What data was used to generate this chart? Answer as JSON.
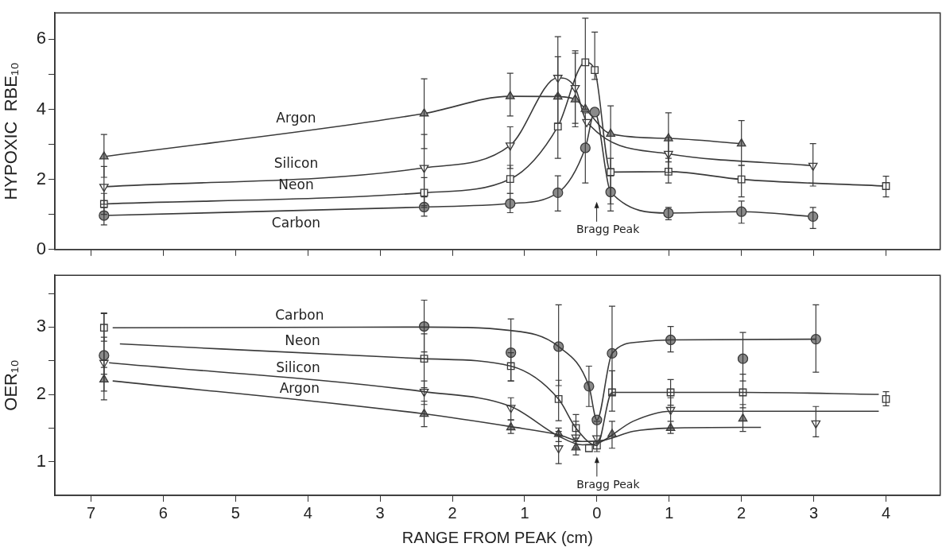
{
  "chart_data": [
    {
      "type": "line",
      "ylabel": "HYPOXIC  RBE₁₀",
      "xlim": [
        -7.5,
        4.75
      ],
      "ylim": [
        0,
        6.75
      ],
      "xticks": [
        {
          "value": -7,
          "label": null
        },
        {
          "value": -6,
          "label": null
        },
        {
          "value": -5,
          "label": null
        },
        {
          "value": -4,
          "label": null
        },
        {
          "value": -3,
          "label": null
        },
        {
          "value": -2,
          "label": null
        },
        {
          "value": -1,
          "label": null
        },
        {
          "value": 0,
          "label": null
        },
        {
          "value": 1,
          "label": null
        },
        {
          "value": 2,
          "label": null
        },
        {
          "value": 3,
          "label": null
        },
        {
          "value": 4,
          "label": null
        }
      ],
      "yticks": [
        0,
        {
          "value": 1,
          "label": null
        },
        2,
        {
          "value": 3,
          "label": null
        },
        4,
        {
          "value": 5,
          "label": null
        },
        6
      ],
      "tick_labels": "y",
      "grid": false,
      "legend": false,
      "line_style": "solid",
      "annotations": [
        "Bragg Peak"
      ],
      "series": [
        {
          "name": "Argon",
          "color": "#3a3a3a",
          "marker": "triangle",
          "x": [
            -6.82,
            -2.39,
            -1.2,
            -0.54,
            -0.3,
            -0.16,
            0.19,
            0.99,
            2.0
          ],
          "values": [
            2.65,
            3.88,
            4.37,
            4.36,
            4.28,
            4.01,
            3.3,
            3.17,
            3.02
          ],
          "errors": [
            [
              2.06,
              3.28
            ],
            [
              2.88,
              4.87
            ],
            [
              3.81,
              5.03
            ],
            [
              3.6,
              5.5
            ],
            [
              3.6,
              5.6
            ],
            null,
            [
              2.3,
              4.1
            ],
            [
              2.5,
              3.9
            ],
            [
              2.4,
              3.68
            ]
          ]
        },
        {
          "name": "Silicon",
          "color": "#3a3a3a",
          "marker": "triangle-down",
          "x": [
            -6.82,
            -2.39,
            -1.2,
            -0.54,
            -0.3,
            -0.14,
            0.99,
            2.99
          ],
          "values": [
            1.79,
            2.33,
            2.97,
            4.9,
            4.61,
            3.64,
            2.73,
            2.39
          ],
          "errors": [
            [
              1.29,
              2.37
            ],
            [
              1.25,
              3.28
            ],
            [
              2.31,
              3.5
            ],
            [
              4.37,
              6.07
            ],
            [
              3.5,
              5.67
            ],
            null,
            [
              2.2,
              3.2
            ],
            [
              1.81,
              3.02
            ]
          ]
        },
        {
          "name": "Neon",
          "color": "#3a3a3a",
          "marker": "square",
          "x": [
            -6.82,
            -2.39,
            -1.2,
            -0.54,
            -0.16,
            -0.03,
            0.19,
            0.99,
            2.0,
            4.0
          ],
          "values": [
            1.3,
            1.62,
            2.01,
            3.51,
            5.34,
            5.12,
            2.21,
            2.22,
            2.0,
            1.81
          ],
          "errors": [
            [
              1.0,
              1.6
            ],
            [
              1.2,
              2.05
            ],
            [
              1.6,
              2.4
            ],
            [
              2.6,
              4.4
            ],
            [
              4.0,
              6.6
            ],
            [
              4.85,
              6.2
            ],
            [
              1.3,
              2.6
            ],
            [
              1.9,
              2.6
            ],
            [
              1.5,
              2.4
            ],
            [
              1.5,
              2.09
            ]
          ]
        },
        {
          "name": "Carbon",
          "color": "#3a3a3a",
          "marker": "circle",
          "x": [
            -6.82,
            -2.39,
            -1.2,
            -0.54,
            -0.16,
            -0.03,
            0.19,
            0.99,
            2.0,
            2.99
          ],
          "values": [
            0.97,
            1.21,
            1.31,
            1.62,
            2.9,
            3.92,
            1.64,
            1.04,
            1.08,
            0.94
          ],
          "errors": [
            [
              0.7,
              1.2
            ],
            [
              0.95,
              1.5
            ],
            [
              1.05,
              1.6
            ],
            [
              1.1,
              2.1
            ],
            [
              1.9,
              3.9
            ],
            null,
            [
              1.1,
              2.1
            ],
            [
              0.85,
              1.2
            ],
            [
              0.75,
              1.38
            ],
            [
              0.6,
              1.2
            ]
          ]
        }
      ]
    },
    {
      "type": "scatter",
      "xlabel": "RANGE FROM PEAK (cm)",
      "ylabel": "OER₁₀",
      "xlim": [
        -7.5,
        4.75
      ],
      "ylim": [
        0.5,
        3.77
      ],
      "xticks": [
        {
          "value": -7,
          "label": "7"
        },
        {
          "value": -6,
          "label": "6"
        },
        {
          "value": -5,
          "label": "5"
        },
        {
          "value": -4,
          "label": "4"
        },
        {
          "value": -3,
          "label": "3"
        },
        {
          "value": -2,
          "label": "2"
        },
        {
          "value": -1,
          "label": "1"
        },
        0,
        1,
        2,
        3,
        4
      ],
      "yticks": [
        1,
        {
          "value": 1.5,
          "label": null
        },
        2,
        {
          "value": 2.5,
          "label": null
        },
        3,
        {
          "value": 3.5,
          "label": null
        }
      ],
      "grid": false,
      "legend": false,
      "line_style": "solid",
      "annotations": [
        {
          "text": "Bragg Peak",
          "x": 0,
          "y": 1.24
        }
      ],
      "series": [
        {
          "name": "Carbon",
          "type": "line",
          "color": "#3a3a3a",
          "marker": "none",
          "x": [
            -6.7,
            -2.39,
            -1.2,
            -0.53,
            -0.11,
            0.0,
            0.21,
            0.6,
            1.02,
            3.03
          ],
          "values": [
            2.99,
            3.0,
            2.95,
            2.71,
            2.12,
            1.62,
            2.61,
            2.78,
            2.81,
            2.82
          ]
        },
        {
          "name": "Neon",
          "type": "line",
          "color": "#3a3a3a",
          "marker": "none",
          "x": [
            -6.6,
            -2.39,
            -1.19,
            -0.53,
            -0.29,
            0.0,
            0.21,
            1.02,
            2.02,
            3.9
          ],
          "values": [
            2.75,
            2.53,
            2.42,
            1.93,
            1.5,
            1.24,
            2.03,
            2.03,
            2.03,
            2.0
          ]
        },
        {
          "name": "Silicon",
          "type": "line",
          "color": "#3a3a3a",
          "marker": "none",
          "x": [
            -6.75,
            -2.39,
            -1.19,
            -0.53,
            -0.2,
            0.0,
            0.5,
            1.02,
            2.0,
            3.9
          ],
          "values": [
            2.47,
            2.04,
            1.82,
            1.38,
            1.25,
            1.27,
            1.6,
            1.75,
            1.75,
            1.75
          ]
        },
        {
          "name": "Argon",
          "type": "line",
          "color": "#3a3a3a",
          "marker": "none",
          "x": [
            -6.7,
            -2.39,
            -1.19,
            -0.53,
            -0.2,
            0.1,
            0.5,
            1.02,
            2.27
          ],
          "values": [
            2.2,
            1.71,
            1.52,
            1.4,
            1.3,
            1.32,
            1.45,
            1.5,
            1.51
          ]
        },
        {
          "color": "#3a3a3a",
          "marker": "circle",
          "x": [
            -6.82,
            -2.39,
            -1.19,
            -0.53,
            -0.11,
            0.0,
            0.21,
            1.02,
            2.02,
            3.03
          ],
          "values": [
            2.58,
            3.01,
            2.62,
            2.71,
            2.12,
            1.62,
            2.61,
            2.81,
            2.53,
            2.82
          ],
          "errors": [
            [
              2.3,
              3.2
            ],
            [
              2.63,
              3.4
            ],
            [
              2.2,
              3.12
            ],
            [
              2.13,
              3.33
            ],
            [
              1.82,
              2.42
            ],
            null,
            [
              2.0,
              3.31
            ],
            [
              2.63,
              3.01
            ],
            [
              2.2,
              2.92
            ],
            [
              2.33,
              3.33
            ]
          ]
        },
        {
          "color": "#3a3a3a",
          "marker": "square",
          "x": [
            -6.82,
            -2.39,
            -1.19,
            -0.53,
            -0.29,
            -0.11,
            0.0,
            0.21,
            1.02,
            2.02,
            4.0
          ],
          "values": [
            2.99,
            2.53,
            2.42,
            1.93,
            1.5,
            1.2,
            1.24,
            2.03,
            2.03,
            2.03,
            1.93
          ],
          "errors": [
            [
              2.79,
              3.21
            ],
            [
              2.1,
              2.9
            ],
            [
              2.2,
              2.62
            ],
            [
              1.61,
              2.21
            ],
            [
              1.3,
              1.7
            ],
            null,
            null,
            [
              1.75,
              2.35
            ],
            [
              1.84,
              2.22
            ],
            [
              1.8,
              2.3
            ],
            [
              1.83,
              2.04
            ]
          ]
        },
        {
          "color": "#3a3a3a",
          "marker": "triangle-down",
          "x": [
            -6.82,
            -2.39,
            -1.19,
            -0.53,
            -0.29,
            0.0,
            1.02,
            3.03
          ],
          "values": [
            2.47,
            2.04,
            1.8,
            1.2,
            1.36,
            1.35,
            1.77,
            1.57
          ],
          "errors": [
            [
              2.05,
              2.85
            ],
            [
              1.85,
              2.2
            ],
            [
              1.62,
              1.95
            ],
            [
              0.97,
              1.45
            ],
            [
              1.2,
              1.6
            ],
            [
              1.15,
              1.6
            ],
            [
              1.5,
              1.95
            ],
            [
              1.37,
              1.82
            ]
          ]
        },
        {
          "color": "#3a3a3a",
          "marker": "triangle",
          "x": [
            -6.82,
            -2.39,
            -1.19,
            -0.53,
            -0.29,
            0.21,
            1.02,
            2.02
          ],
          "values": [
            2.22,
            1.71,
            1.51,
            1.41,
            1.21,
            1.41,
            1.5,
            1.64
          ],
          "errors": [
            [
              1.92,
              2.4
            ],
            [
              1.52,
              1.9
            ],
            [
              1.42,
              1.62
            ],
            [
              1.3,
              1.5
            ],
            [
              1.1,
              1.35
            ],
            [
              1.2,
              1.6
            ],
            [
              1.42,
              1.6
            ],
            [
              1.45,
              1.85
            ]
          ]
        }
      ]
    }
  ]
}
